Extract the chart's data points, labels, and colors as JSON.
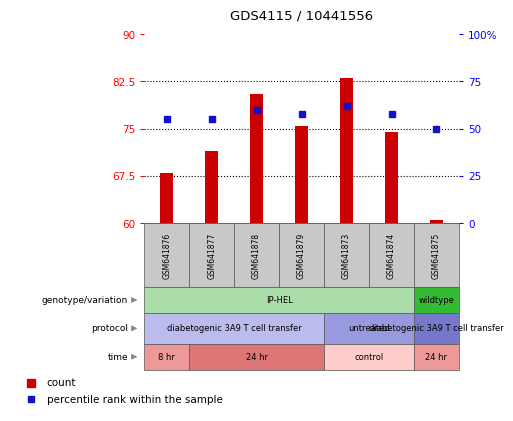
{
  "title": "GDS4115 / 10441556",
  "samples": [
    "GSM641876",
    "GSM641877",
    "GSM641878",
    "GSM641879",
    "GSM641873",
    "GSM641874",
    "GSM641875"
  ],
  "count_values": [
    68.0,
    71.5,
    80.5,
    75.5,
    83.0,
    74.5,
    60.5
  ],
  "percentile_values": [
    55.0,
    55.0,
    60.0,
    57.5,
    62.0,
    57.5,
    50.0
  ],
  "bar_color": "#cc0000",
  "dot_color": "#1111cc",
  "ylim_left": [
    60,
    90
  ],
  "ylim_right": [
    0,
    100
  ],
  "yticks_left": [
    60,
    67.5,
    75,
    82.5,
    90
  ],
  "yticks_right": [
    0,
    25,
    50,
    75,
    100
  ],
  "ytick_labels_left": [
    "60",
    "67.5",
    "75",
    "82.5",
    "90"
  ],
  "ytick_labels_right": [
    "0",
    "25",
    "50",
    "75",
    "100%"
  ],
  "hlines": [
    67.5,
    75,
    82.5
  ],
  "row_labels": [
    "genotype/variation",
    "protocol",
    "time"
  ],
  "row1_cells": [
    {
      "label": "IP-HEL",
      "span": [
        0,
        5
      ],
      "color": "#aaddaa"
    },
    {
      "label": "wildtype",
      "span": [
        6,
        6
      ],
      "color": "#33bb33"
    }
  ],
  "row2_cells": [
    {
      "label": "diabetogenic 3A9 T cell transfer",
      "span": [
        0,
        3
      ],
      "color": "#bbbbee"
    },
    {
      "label": "untreated",
      "span": [
        4,
        5
      ],
      "color": "#9999dd"
    },
    {
      "label": "diabetogenic 3A9 T cell transfer",
      "span": [
        6,
        6
      ],
      "color": "#7777cc"
    }
  ],
  "row3_cells": [
    {
      "label": "8 hr",
      "span": [
        0,
        0
      ],
      "color": "#ee9999"
    },
    {
      "label": "24 hr",
      "span": [
        1,
        3
      ],
      "color": "#dd7777"
    },
    {
      "label": "control",
      "span": [
        4,
        5
      ],
      "color": "#ffcccc"
    },
    {
      "label": "24 hr",
      "span": [
        6,
        6
      ],
      "color": "#ee9999"
    }
  ],
  "legend_count_label": "count",
  "legend_pct_label": "percentile rank within the sample",
  "background_color": "#ffffff",
  "sample_bg_color": "#c8c8c8",
  "bar_width": 0.3
}
